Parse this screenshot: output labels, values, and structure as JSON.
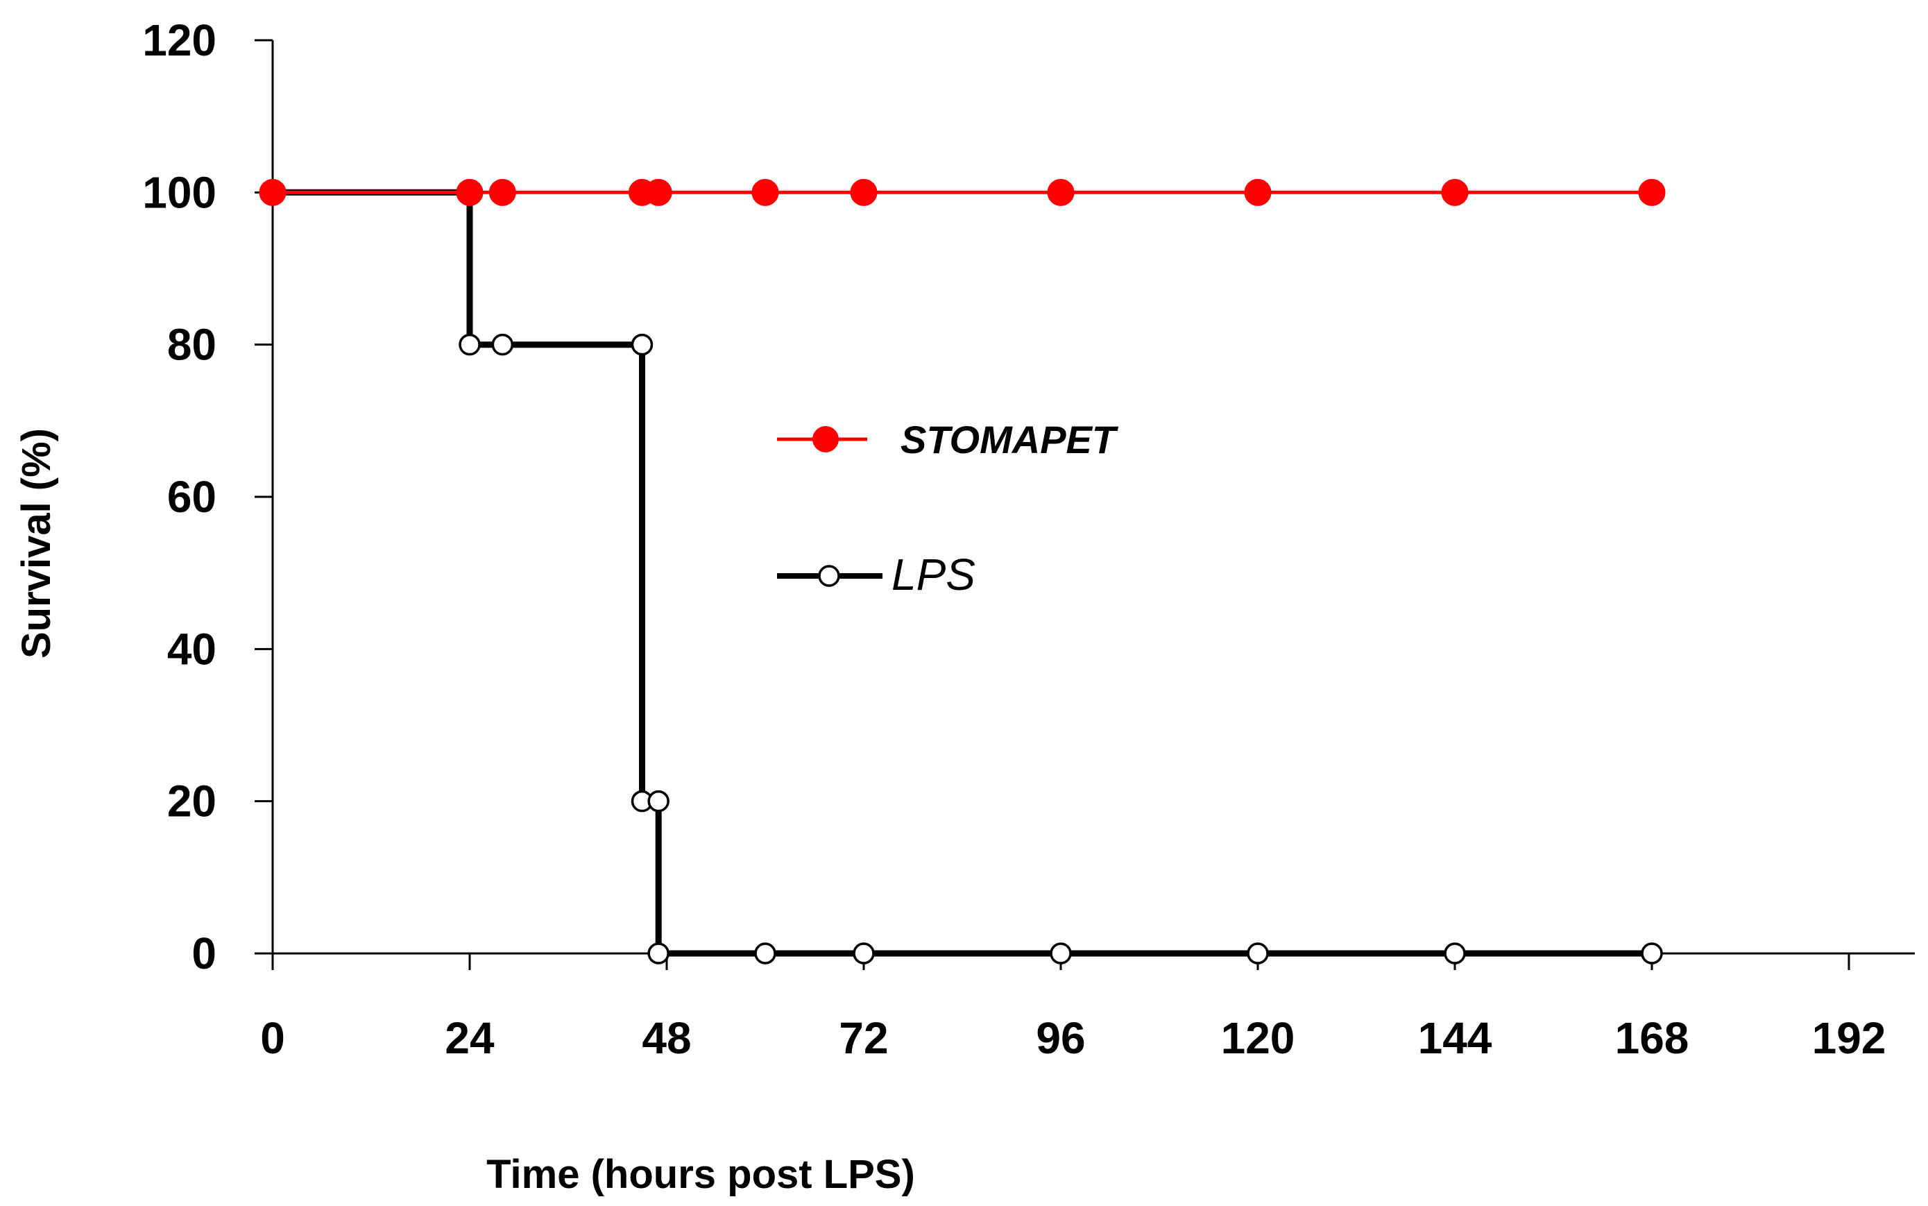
{
  "chart_data": {
    "type": "line",
    "title": "",
    "xlabel": "Time (hours post LPS)",
    "ylabel": "Survival (%)",
    "xlim": [
      0,
      192
    ],
    "ylim": [
      0,
      120
    ],
    "xticks": [
      0,
      24,
      48,
      72,
      96,
      120,
      144,
      168,
      192
    ],
    "yticks": [
      0,
      20,
      40,
      60,
      80,
      100,
      120
    ],
    "grid": false,
    "legend_position": "center",
    "series": [
      {
        "name": "STOMAPET",
        "color": "#ff0000",
        "marker": "filled-circle",
        "step": false,
        "x": [
          0,
          24,
          28,
          45,
          47,
          60,
          72,
          96,
          120,
          144,
          168
        ],
        "y": [
          100,
          100,
          100,
          100,
          100,
          100,
          100,
          100,
          100,
          100,
          100
        ]
      },
      {
        "name": "LPS",
        "color": "#000000",
        "marker": "open-circle",
        "step": true,
        "x": [
          0,
          24,
          24,
          28,
          45,
          45,
          47,
          47,
          60,
          72,
          96,
          120,
          144,
          168
        ],
        "y": [
          100,
          100,
          80,
          80,
          80,
          20,
          20,
          0,
          0,
          0,
          0,
          0,
          0,
          0
        ]
      }
    ]
  }
}
